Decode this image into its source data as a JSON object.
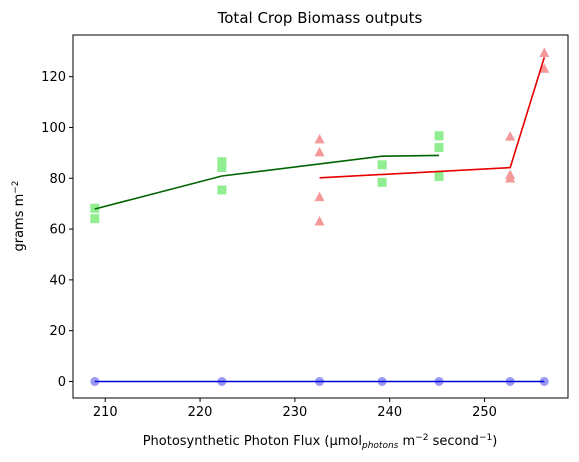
{
  "chart_data": {
    "type": "scatter",
    "title": "Total Crop Biomass outputs",
    "xlabel": {
      "prefix": "Photosynthetic Photon Flux (µmol",
      "sub": "photons",
      "mid": " m",
      "sup1": "−2",
      "mid2": " second",
      "sup2": "−1",
      "suffix": ")"
    },
    "ylabel": {
      "prefix": "grams m",
      "sup": "−2"
    },
    "xlim": [
      206.6,
      258.8
    ],
    "ylim": [
      -6.5,
      136.4
    ],
    "xticks": [
      210,
      220,
      230,
      240,
      250
    ],
    "yticks": [
      0,
      20,
      40,
      60,
      80,
      100,
      120
    ],
    "grid": false,
    "series": [
      {
        "marker": "square",
        "color": "#90ee90",
        "points": [
          [
            208.9,
            68.2
          ],
          [
            208.9,
            64.1
          ],
          [
            222.3,
            86.5
          ],
          [
            222.3,
            84.2
          ],
          [
            222.3,
            75.4
          ],
          [
            239.2,
            85.3
          ],
          [
            239.2,
            78.4
          ],
          [
            245.2,
            96.7
          ],
          [
            245.2,
            92.1
          ],
          [
            245.2,
            80.7
          ]
        ],
        "line_color": "#006400",
        "line": [
          [
            208.9,
            67.9
          ],
          [
            222.3,
            80.9
          ],
          [
            239.2,
            88.7
          ],
          [
            245.2,
            89.0
          ]
        ]
      },
      {
        "marker": "triangle",
        "color": "#f4989a",
        "points": [
          [
            232.6,
            95.3
          ],
          [
            232.6,
            90.2
          ],
          [
            232.6,
            72.6
          ],
          [
            232.6,
            63.0
          ],
          [
            252.7,
            96.4
          ],
          [
            252.7,
            81.3
          ],
          [
            252.7,
            79.9
          ],
          [
            256.3,
            129.3
          ],
          [
            256.3,
            123.1
          ]
        ],
        "line_color": "#e60000",
        "line": [
          [
            232.6,
            80.2
          ],
          [
            252.7,
            84.2
          ],
          [
            256.3,
            127.6
          ]
        ]
      },
      {
        "marker": "circle",
        "color": "#9a9af0",
        "points": [
          [
            208.9,
            0
          ],
          [
            222.3,
            0
          ],
          [
            232.6,
            0
          ],
          [
            239.2,
            0
          ],
          [
            245.2,
            0
          ],
          [
            252.7,
            0
          ],
          [
            256.3,
            0
          ]
        ],
        "line_color": "#0000dd",
        "line": [
          [
            208.9,
            0
          ],
          [
            256.3,
            0
          ]
        ]
      }
    ]
  }
}
